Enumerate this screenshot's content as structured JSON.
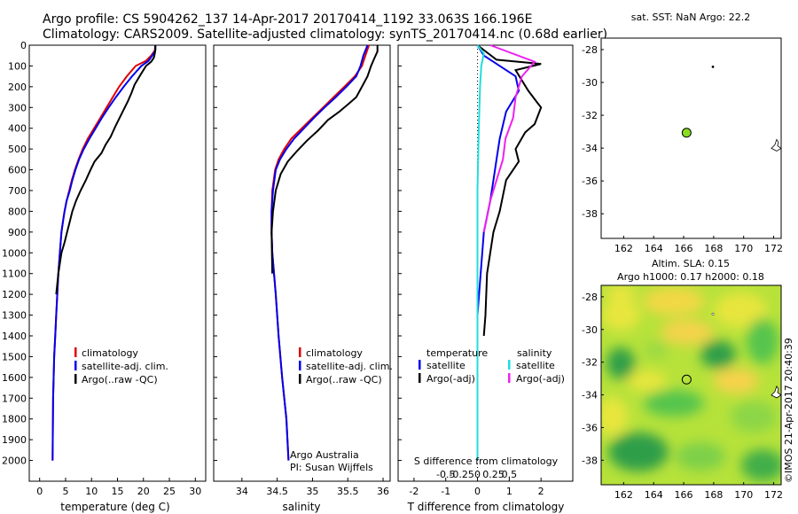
{
  "header": {
    "line1": "Argo profile: CS 5904262_137 14-Apr-2017 20170414_1192 33.063S 166.196E",
    "line2": "Climatology: CARS2009. Satellite-adjusted climatology: synTS_20170414.nc (0.68d earlier)"
  },
  "side_label": "©IMOS 21-Apr-2017 20:40:39",
  "colors": {
    "climatology": "#e00000",
    "satellite": "#0000ee",
    "argo": "#000000",
    "s_satellite": "#22dddd",
    "s_argo": "#ee22ee",
    "float_marker": "#88dd22"
  },
  "chart_data": [
    {
      "type": "line",
      "xlabel": "temperature (deg C)",
      "ylim": [
        2100,
        0
      ],
      "xlim": [
        -2,
        32
      ],
      "xticks": [
        "0",
        "5",
        "10",
        "15",
        "20",
        "25",
        "30"
      ],
      "yticks": [
        "0",
        "100",
        "200",
        "300",
        "400",
        "500",
        "600",
        "700",
        "800",
        "900",
        "1000",
        "1100",
        "1200",
        "1300",
        "1400",
        "1500",
        "1600",
        "1700",
        "1800",
        "1900",
        "2000"
      ],
      "legend": [
        "climatology",
        "satellite-adj. clim.",
        "Argo(..raw -QC)"
      ],
      "series": [
        {
          "name": "climatology",
          "x": [
            22.3,
            22.2,
            21.5,
            20.5,
            18.5,
            16.8,
            15.3,
            14.1,
            12.9,
            11.7,
            10.5,
            9.3,
            8.3,
            7.5,
            6.8,
            6.2,
            5.7,
            5.2,
            4.8,
            4.5,
            4.2,
            3.9,
            3.6,
            3.4,
            3.2,
            3.0,
            2.8,
            2.6,
            2.5
          ],
          "y": [
            0,
            25,
            50,
            75,
            100,
            150,
            200,
            250,
            300,
            350,
            400,
            450,
            500,
            550,
            600,
            650,
            700,
            750,
            800,
            850,
            900,
            1000,
            1100,
            1200,
            1300,
            1400,
            1500,
            1700,
            2000
          ]
        },
        {
          "name": "satellite-adj. clim.",
          "x": [
            22.3,
            22.3,
            21.7,
            21.0,
            19.6,
            17.8,
            16.2,
            14.7,
            13.3,
            12.0,
            10.8,
            9.6,
            8.5,
            7.6,
            6.9,
            6.3,
            5.8,
            5.2,
            4.8,
            4.5,
            4.2,
            3.9,
            3.6,
            3.4,
            3.2,
            3.0,
            2.8,
            2.6,
            2.5
          ],
          "y": [
            0,
            25,
            50,
            75,
            100,
            150,
            200,
            250,
            300,
            350,
            400,
            450,
            500,
            550,
            600,
            650,
            700,
            750,
            800,
            850,
            900,
            1000,
            1100,
            1200,
            1300,
            1400,
            1500,
            1700,
            2000
          ]
        },
        {
          "name": "Argo(..raw -QC)",
          "x": [
            22.3,
            22.3,
            22.2,
            22.0,
            21.5,
            20.5,
            19.5,
            18.3,
            17.7,
            17.0,
            15.8,
            14.6,
            13.7,
            12.7,
            11.9,
            10.6,
            9.8,
            8.9,
            7.9,
            7.0,
            6.3,
            5.8,
            5.3,
            4.8,
            4.2,
            3.6,
            3.2
          ],
          "y": [
            0,
            20,
            40,
            60,
            80,
            100,
            140,
            190,
            230,
            270,
            330,
            390,
            440,
            480,
            520,
            560,
            600,
            650,
            700,
            750,
            800,
            850,
            900,
            950,
            1000,
            1100,
            1200
          ]
        }
      ]
    },
    {
      "type": "line",
      "xlabel": "salinity",
      "ylim": [
        2100,
        0
      ],
      "xlim": [
        33.6,
        36.1
      ],
      "xticks": [
        "34",
        "34.5",
        "35",
        "35.5",
        "36"
      ],
      "legend": [
        "climatology",
        "satellite-adj. clim.",
        "Argo(..raw -QC)"
      ],
      "annotation": [
        "Argo Australia",
        "PI: Susan Wijffels"
      ],
      "series": [
        {
          "name": "climatology",
          "x": [
            35.8,
            35.75,
            35.7,
            35.6,
            35.45,
            35.3,
            35.15,
            35.0,
            34.85,
            34.7,
            34.6,
            34.52,
            34.47,
            34.43,
            34.42,
            34.42,
            34.43,
            34.48,
            34.52,
            34.57,
            34.63,
            34.66
          ],
          "y": [
            0,
            50,
            100,
            150,
            200,
            250,
            300,
            350,
            400,
            450,
            500,
            550,
            600,
            700,
            800,
            900,
            1000,
            1200,
            1400,
            1600,
            1800,
            2000
          ]
        },
        {
          "name": "satellite-adj. clim.",
          "x": [
            35.78,
            35.72,
            35.68,
            35.62,
            35.48,
            35.33,
            35.17,
            35.02,
            34.88,
            34.74,
            34.63,
            34.54,
            34.48,
            34.44,
            34.42,
            34.42,
            34.43,
            34.48,
            34.52,
            34.57,
            34.63,
            34.66
          ],
          "y": [
            0,
            50,
            100,
            150,
            200,
            250,
            300,
            350,
            400,
            450,
            500,
            550,
            600,
            700,
            800,
            900,
            1000,
            1200,
            1400,
            1600,
            1800,
            2000
          ]
        },
        {
          "name": "Argo(..raw -QC)",
          "x": [
            35.92,
            35.92,
            35.88,
            35.83,
            35.78,
            35.7,
            35.62,
            35.52,
            35.38,
            35.22,
            35.08,
            34.92,
            34.78,
            34.65,
            34.55,
            34.48,
            34.44,
            34.42,
            34.43
          ],
          "y": [
            0,
            30,
            60,
            100,
            150,
            200,
            250,
            280,
            320,
            360,
            410,
            460,
            510,
            560,
            620,
            700,
            800,
            900,
            1100
          ]
        }
      ]
    },
    {
      "type": "line",
      "xlabel": "T difference from climatology",
      "xlabel2": "S difference from climatology",
      "ylim": [
        2100,
        0
      ],
      "xlim": [
        -2.5,
        3.0
      ],
      "xticks": [
        "-2",
        "-1",
        "0",
        "1",
        "2"
      ],
      "xticks2": [
        "-0.5",
        "-0.25",
        "0",
        "0.25",
        "0.5"
      ],
      "legend_left_title": "temperature",
      "legend_right_title": "salinity",
      "legend": [
        "satellite",
        "Argo(-adj)",
        "satellite",
        "Argo(-adj)"
      ],
      "series": [
        {
          "name": "T satellite",
          "x": [
            0,
            0.2,
            1.2,
            1.3,
            0.9,
            0.7,
            0.6,
            0.5,
            0.4,
            0.2,
            0.1,
            0.0,
            0.0,
            0.0
          ],
          "y": [
            0,
            50,
            150,
            220,
            320,
            450,
            550,
            650,
            750,
            900,
            1100,
            1300,
            1600,
            2000
          ]
        },
        {
          "name": "T Argo(-adj)",
          "x": [
            0.0,
            0.6,
            2.0,
            1.2,
            1.6,
            1.9,
            2.0,
            1.8,
            1.5,
            1.2,
            1.3,
            0.9,
            0.7,
            0.5,
            0.4,
            0.3,
            0.25,
            0.2
          ],
          "y": [
            0,
            70,
            90,
            120,
            220,
            280,
            300,
            380,
            420,
            500,
            560,
            650,
            800,
            900,
            1000,
            1100,
            1300,
            1400
          ]
        },
        {
          "name": "S satellite",
          "x": [
            0.0,
            0.05,
            0.03,
            0.02,
            0.01,
            0.0,
            0.0,
            0.0,
            0.0
          ],
          "y": [
            0,
            40,
            100,
            200,
            400,
            700,
            1000,
            1500,
            2000
          ]
        },
        {
          "name": "S Argo(-adj)",
          "x": [
            0.1,
            0.45,
            0.35,
            0.3,
            0.28,
            0.22,
            0.2,
            0.15,
            0.1,
            0.05
          ],
          "y": [
            0,
            80,
            150,
            250,
            350,
            450,
            550,
            650,
            750,
            900
          ]
        }
      ]
    },
    {
      "type": "scatter",
      "title": "sat. SST: NaN Argo: 22.2",
      "xlim": [
        160.5,
        172.5
      ],
      "ylim": [
        -39.5,
        -27.3
      ],
      "xticks": [
        "162",
        "164",
        "166",
        "168",
        "170",
        "172"
      ],
      "yticks": [
        "-28",
        "-30",
        "-32",
        "-34",
        "-36",
        "-38"
      ],
      "point": {
        "lon": 166.196,
        "lat": -33.063
      }
    },
    {
      "type": "heatmap",
      "title": "Altim. SLA: 0.15",
      "subtitle": "Argo h1000: 0.17 h2000: 0.18",
      "xlim": [
        160.5,
        172.5
      ],
      "ylim": [
        -39.5,
        -27.3
      ],
      "xticks": [
        "162",
        "164",
        "166",
        "168",
        "170",
        "172"
      ],
      "yticks": [
        "-28",
        "-30",
        "-32",
        "-34",
        "-36",
        "-38"
      ],
      "point": {
        "lon": 166.196,
        "lat": -33.063
      }
    }
  ]
}
